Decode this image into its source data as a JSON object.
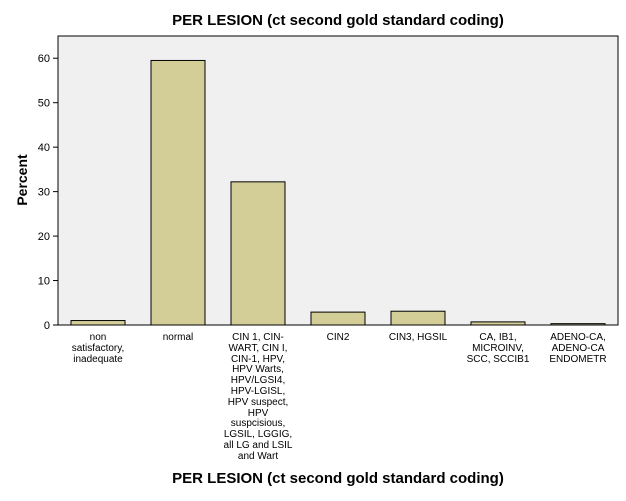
{
  "chart_data": {
    "type": "bar",
    "title": "PER LESION (ct second gold standard coding)",
    "xlabel": "PER LESION (ct second gold standard coding)",
    "ylabel": "Percent",
    "ylim": [
      0,
      65
    ],
    "yticks": [
      0,
      10,
      20,
      30,
      40,
      50,
      60
    ],
    "grid": false,
    "categories": [
      "non\nsatisfactory,\ninadequate",
      "normal",
      "CIN 1, CIN-\nWART, CIN I,\nCIN-1, HPV,\nHPV Warts,\nHPV/LGSI4,\nHPV-LGISL,\nHPV suspect,\nHPV\nsuspcisious,\nLGSIL, LGGIG,\nall LG and LSIL\nand Wart",
      "CIN2",
      "CIN3, HGSIL",
      "CA, IB1,\nMICROINV,\nSCC, SCCIB1",
      "ADENO-CA,\nADENO-CA\nENDOMETR"
    ],
    "values": [
      1.0,
      59.5,
      32.2,
      2.9,
      3.1,
      0.7,
      0.3
    ],
    "colors": {
      "bar": "#d3ce97",
      "bar_edge": "#000000",
      "plot_bg": "#f0f0f0"
    }
  }
}
